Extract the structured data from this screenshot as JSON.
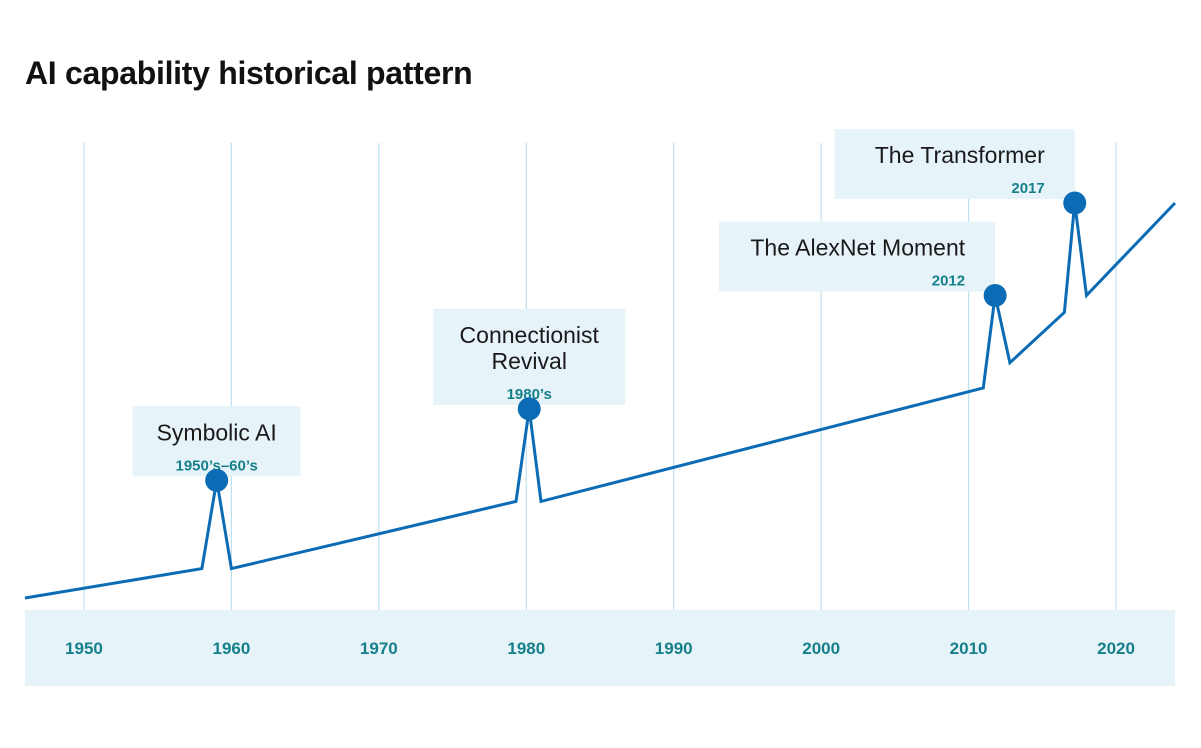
{
  "chart_data": {
    "type": "line",
    "title": "AI capability historical pattern",
    "xlabel": "",
    "ylabel": "",
    "xlim": [
      1946,
      2024
    ],
    "ylim": [
      0,
      1
    ],
    "grid": true,
    "x_ticks": [
      1950,
      1960,
      1970,
      1980,
      1990,
      2000,
      2010,
      2020
    ],
    "series": [
      {
        "values": [
          {
            "x": 1946,
            "y": 0.0
          },
          {
            "x": 1958,
            "y": 0.07
          },
          {
            "x": 1959,
            "y": 0.28
          },
          {
            "x": 1960,
            "y": 0.07
          },
          {
            "x": 1979.3,
            "y": 0.23
          },
          {
            "x": 1980.2,
            "y": 0.45
          },
          {
            "x": 1981,
            "y": 0.23
          },
          {
            "x": 2011,
            "y": 0.5
          },
          {
            "x": 2011.8,
            "y": 0.72
          },
          {
            "x": 2012.8,
            "y": 0.56
          },
          {
            "x": 2016.5,
            "y": 0.68
          },
          {
            "x": 2017.2,
            "y": 0.94
          },
          {
            "x": 2018,
            "y": 0.72
          },
          {
            "x": 2024,
            "y": 0.94
          }
        ]
      }
    ],
    "annotations": [
      {
        "name": "Symbolic AI",
        "date": "1950’s–60’s",
        "x": 1959,
        "y": 0.28,
        "align": "center"
      },
      {
        "name": "Connectionist\nRevival",
        "date": "1980’s",
        "x": 1980.2,
        "y": 0.45,
        "align": "center"
      },
      {
        "name": "The AlexNet Moment",
        "date": "2012",
        "x": 2011.8,
        "y": 0.72,
        "align": "right"
      },
      {
        "name": "The Transformer",
        "date": "2017",
        "x": 2017.2,
        "y": 0.94,
        "align": "right"
      }
    ]
  },
  "colors": {
    "line": "#0b6cb5",
    "marker": "#0b6cb5",
    "grid": "#bfe0ef",
    "axis_band": "#e6f3f9",
    "label_box": "#e6f3f9",
    "tick_text": "#16808a",
    "date_text": "#16808a",
    "title_text": "#111111"
  }
}
